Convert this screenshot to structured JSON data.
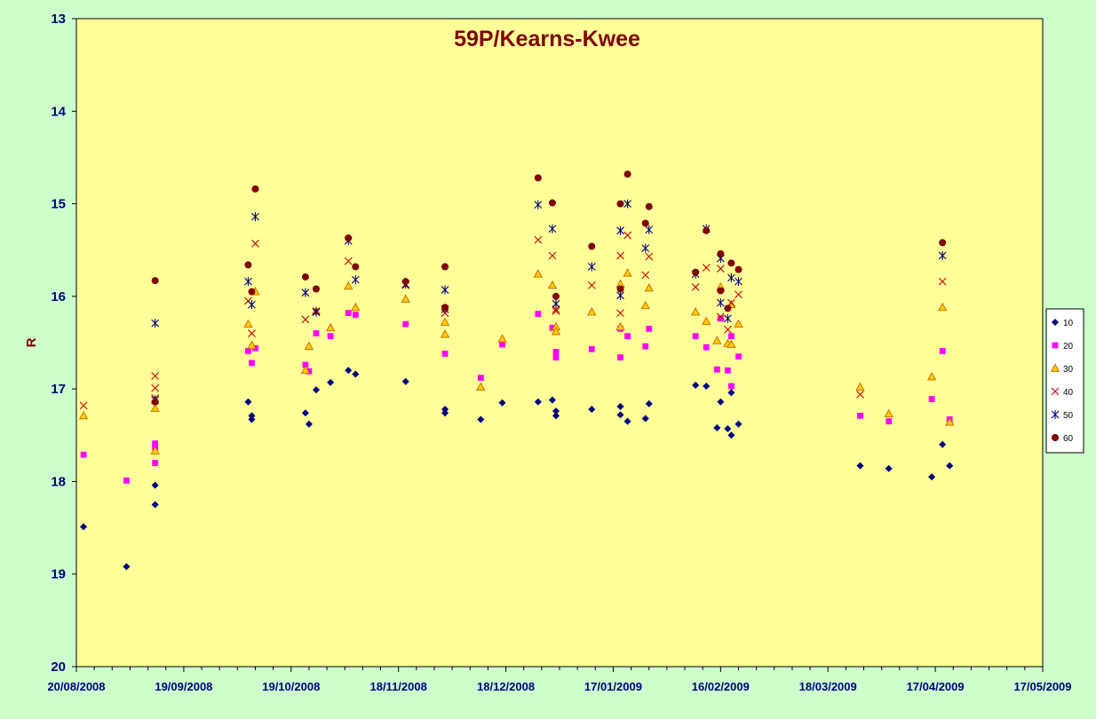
{
  "chart_data": {
    "type": "scatter",
    "title": "59P/Kearns-Kwee",
    "xlabel": "",
    "ylabel": "R",
    "x_axis": {
      "min": "2008-08-20",
      "max": "2009-05-17",
      "tick_labels": [
        "20/08/2008",
        "19/09/2008",
        "19/10/2008",
        "18/11/2008",
        "18/12/2008",
        "17/01/2009",
        "16/02/2009",
        "18/03/2009",
        "17/04/2009",
        "17/05/2009"
      ]
    },
    "y_axis": {
      "min": 13,
      "max": 20,
      "inverted": true,
      "tick_labels": [
        "13",
        "14",
        "15",
        "16",
        "17",
        "18",
        "19",
        "20"
      ]
    },
    "grid": false,
    "legend_position": "right",
    "plot_background": "#ffff99",
    "page_background": "#ccffcc",
    "series": [
      {
        "name": "10",
        "marker": "diamond",
        "color": "#000080",
        "points": [
          [
            "2008-08-22",
            18.49
          ],
          [
            "2008-09-03",
            18.92
          ],
          [
            "2008-09-11",
            18.04
          ],
          [
            "2008-09-11",
            18.25
          ],
          [
            "2008-10-07",
            17.14
          ],
          [
            "2008-10-08",
            17.33
          ],
          [
            "2008-10-08",
            17.29
          ],
          [
            "2008-10-23",
            17.26
          ],
          [
            "2008-10-24",
            17.38
          ],
          [
            "2008-10-26",
            17.01
          ],
          [
            "2008-10-30",
            16.93
          ],
          [
            "2008-11-04",
            16.8
          ],
          [
            "2008-11-06",
            16.84
          ],
          [
            "2008-11-20",
            16.92
          ],
          [
            "2008-12-01",
            17.22
          ],
          [
            "2008-12-01",
            17.26
          ],
          [
            "2008-12-11",
            17.33
          ],
          [
            "2008-12-17",
            17.15
          ],
          [
            "2008-12-27",
            17.14
          ],
          [
            "2008-12-31",
            17.12
          ],
          [
            "2009-01-01",
            17.24
          ],
          [
            "2009-01-01",
            17.29
          ],
          [
            "2009-01-11",
            17.22
          ],
          [
            "2009-01-19",
            17.19
          ],
          [
            "2009-01-19",
            17.28
          ],
          [
            "2009-01-21",
            17.35
          ],
          [
            "2009-01-26",
            17.32
          ],
          [
            "2009-01-27",
            17.16
          ],
          [
            "2009-02-09",
            16.96
          ],
          [
            "2009-02-12",
            16.97
          ],
          [
            "2009-02-15",
            17.42
          ],
          [
            "2009-02-16",
            17.14
          ],
          [
            "2009-02-18",
            17.43
          ],
          [
            "2009-02-19",
            17.04
          ],
          [
            "2009-02-19",
            17.5
          ],
          [
            "2009-02-21",
            17.38
          ],
          [
            "2009-03-27",
            17.83
          ],
          [
            "2009-04-04",
            17.86
          ],
          [
            "2009-04-16",
            17.95
          ],
          [
            "2009-04-19",
            17.6
          ],
          [
            "2009-04-21",
            17.83
          ]
        ]
      },
      {
        "name": "20",
        "marker": "square",
        "color": "#ff00ff",
        "points": [
          [
            "2008-08-22",
            17.71
          ],
          [
            "2008-09-03",
            17.99
          ],
          [
            "2008-09-11",
            17.59
          ],
          [
            "2008-09-11",
            17.63
          ],
          [
            "2008-09-11",
            17.8
          ],
          [
            "2008-10-07",
            16.59
          ],
          [
            "2008-10-08",
            16.72
          ],
          [
            "2008-10-09",
            16.56
          ],
          [
            "2008-10-23",
            16.74
          ],
          [
            "2008-10-24",
            16.81
          ],
          [
            "2008-10-26",
            16.4
          ],
          [
            "2008-10-30",
            16.43
          ],
          [
            "2008-11-04",
            16.18
          ],
          [
            "2008-11-06",
            16.2
          ],
          [
            "2008-11-20",
            16.3
          ],
          [
            "2008-12-01",
            16.62
          ],
          [
            "2008-12-11",
            16.88
          ],
          [
            "2008-12-17",
            16.52
          ],
          [
            "2008-12-27",
            16.19
          ],
          [
            "2008-12-31",
            16.34
          ],
          [
            "2009-01-01",
            16.6
          ],
          [
            "2009-01-01",
            16.66
          ],
          [
            "2009-01-11",
            16.57
          ],
          [
            "2009-01-19",
            16.35
          ],
          [
            "2009-01-19",
            16.66
          ],
          [
            "2009-01-21",
            16.43
          ],
          [
            "2009-01-26",
            16.54
          ],
          [
            "2009-01-27",
            16.35
          ],
          [
            "2009-02-09",
            16.43
          ],
          [
            "2009-02-12",
            16.55
          ],
          [
            "2009-02-15",
            16.79
          ],
          [
            "2009-02-16",
            16.24
          ],
          [
            "2009-02-18",
            16.8
          ],
          [
            "2009-02-19",
            16.43
          ],
          [
            "2009-02-19",
            16.97
          ],
          [
            "2009-02-21",
            16.65
          ],
          [
            "2009-03-27",
            17.29
          ],
          [
            "2009-04-04",
            17.35
          ],
          [
            "2009-04-16",
            17.11
          ],
          [
            "2009-04-19",
            16.59
          ],
          [
            "2009-04-21",
            17.33
          ]
        ]
      },
      {
        "name": "30",
        "marker": "triangle",
        "color": "#ff9900",
        "points": [
          [
            "2008-08-22",
            17.29
          ],
          [
            "2008-09-11",
            17.21
          ],
          [
            "2008-09-11",
            17.67
          ],
          [
            "2008-10-07",
            16.3
          ],
          [
            "2008-10-08",
            16.53
          ],
          [
            "2008-10-09",
            15.95
          ],
          [
            "2008-10-23",
            16.8
          ],
          [
            "2008-10-24",
            16.54
          ],
          [
            "2008-10-26",
            16.16
          ],
          [
            "2008-10-30",
            16.34
          ],
          [
            "2008-11-04",
            15.89
          ],
          [
            "2008-11-06",
            16.12
          ],
          [
            "2008-11-20",
            16.03
          ],
          [
            "2008-12-01",
            16.28
          ],
          [
            "2008-12-01",
            16.41
          ],
          [
            "2008-12-11",
            16.98
          ],
          [
            "2008-12-17",
            16.46
          ],
          [
            "2008-12-27",
            15.76
          ],
          [
            "2008-12-31",
            15.88
          ],
          [
            "2009-01-01",
            16.33
          ],
          [
            "2009-01-01",
            16.38
          ],
          [
            "2009-01-11",
            16.17
          ],
          [
            "2009-01-19",
            15.87
          ],
          [
            "2009-01-19",
            16.33
          ],
          [
            "2009-01-21",
            15.75
          ],
          [
            "2009-01-26",
            16.1
          ],
          [
            "2009-01-27",
            15.91
          ],
          [
            "2009-02-09",
            16.17
          ],
          [
            "2009-02-12",
            16.27
          ],
          [
            "2009-02-15",
            16.48
          ],
          [
            "2009-02-16",
            15.9
          ],
          [
            "2009-02-18",
            16.51
          ],
          [
            "2009-02-19",
            16.09
          ],
          [
            "2009-02-19",
            16.52
          ],
          [
            "2009-02-21",
            16.3
          ],
          [
            "2009-03-27",
            16.98
          ],
          [
            "2009-04-04",
            17.27
          ],
          [
            "2009-04-16",
            16.87
          ],
          [
            "2009-04-19",
            16.12
          ],
          [
            "2009-04-21",
            17.36
          ]
        ]
      },
      {
        "name": "40",
        "marker": "x",
        "color": "#cc0000",
        "points": [
          [
            "2008-08-22",
            17.18
          ],
          [
            "2008-09-11",
            17.1
          ],
          [
            "2008-09-11",
            16.99
          ],
          [
            "2008-09-11",
            16.86
          ],
          [
            "2008-10-07",
            16.05
          ],
          [
            "2008-10-08",
            16.4
          ],
          [
            "2008-10-09",
            15.43
          ],
          [
            "2008-10-23",
            16.25
          ],
          [
            "2008-10-26",
            16.16
          ],
          [
            "2008-11-04",
            15.62
          ],
          [
            "2008-11-20",
            15.88
          ],
          [
            "2008-12-01",
            16.18
          ],
          [
            "2008-12-27",
            15.39
          ],
          [
            "2008-12-31",
            15.56
          ],
          [
            "2009-01-01",
            16.14
          ],
          [
            "2009-01-01",
            16.16
          ],
          [
            "2009-01-11",
            15.88
          ],
          [
            "2009-01-19",
            15.56
          ],
          [
            "2009-01-19",
            16.18
          ],
          [
            "2009-01-21",
            15.34
          ],
          [
            "2009-01-26",
            15.77
          ],
          [
            "2009-01-27",
            15.57
          ],
          [
            "2009-02-09",
            15.9
          ],
          [
            "2009-02-12",
            15.69
          ],
          [
            "2009-02-16",
            15.7
          ],
          [
            "2009-02-16",
            16.22
          ],
          [
            "2009-02-18",
            16.36
          ],
          [
            "2009-02-19",
            16.07
          ],
          [
            "2009-02-21",
            15.98
          ],
          [
            "2009-03-27",
            17.06
          ],
          [
            "2009-04-19",
            15.84
          ]
        ]
      },
      {
        "name": "50",
        "marker": "star",
        "color": "#000080",
        "points": [
          [
            "2008-09-11",
            16.29
          ],
          [
            "2008-09-11",
            17.12
          ],
          [
            "2008-10-07",
            15.84
          ],
          [
            "2008-10-08",
            16.09
          ],
          [
            "2008-10-09",
            15.14
          ],
          [
            "2008-10-23",
            15.96
          ],
          [
            "2008-10-26",
            16.17
          ],
          [
            "2008-11-04",
            15.4
          ],
          [
            "2008-11-06",
            15.82
          ],
          [
            "2008-11-20",
            15.87
          ],
          [
            "2008-12-01",
            15.93
          ],
          [
            "2008-12-01",
            16.14
          ],
          [
            "2008-12-27",
            15.01
          ],
          [
            "2008-12-31",
            15.27
          ],
          [
            "2009-01-01",
            16.08
          ],
          [
            "2009-01-11",
            15.68
          ],
          [
            "2009-01-19",
            15.29
          ],
          [
            "2009-01-19",
            15.99
          ],
          [
            "2009-01-21",
            15.0
          ],
          [
            "2009-01-26",
            15.48
          ],
          [
            "2009-01-27",
            15.28
          ],
          [
            "2009-02-09",
            15.76
          ],
          [
            "2009-02-12",
            15.27
          ],
          [
            "2009-02-16",
            15.59
          ],
          [
            "2009-02-16",
            16.07
          ],
          [
            "2009-02-18",
            16.24
          ],
          [
            "2009-02-19",
            15.8
          ],
          [
            "2009-02-21",
            15.84
          ],
          [
            "2009-04-19",
            15.56
          ]
        ]
      },
      {
        "name": "60",
        "marker": "circle",
        "color": "#800000",
        "points": [
          [
            "2008-09-11",
            15.83
          ],
          [
            "2008-09-11",
            17.14
          ],
          [
            "2008-10-07",
            15.66
          ],
          [
            "2008-10-08",
            15.95
          ],
          [
            "2008-10-09",
            14.84
          ],
          [
            "2008-10-23",
            15.79
          ],
          [
            "2008-10-26",
            15.92
          ],
          [
            "2008-11-04",
            15.37
          ],
          [
            "2008-11-06",
            15.68
          ],
          [
            "2008-11-20",
            15.84
          ],
          [
            "2008-12-01",
            15.68
          ],
          [
            "2008-12-01",
            16.12
          ],
          [
            "2008-12-27",
            14.72
          ],
          [
            "2008-12-31",
            14.99
          ],
          [
            "2009-01-01",
            16.0
          ],
          [
            "2009-01-11",
            15.46
          ],
          [
            "2009-01-19",
            15.0
          ],
          [
            "2009-01-19",
            15.92
          ],
          [
            "2009-01-21",
            14.68
          ],
          [
            "2009-01-26",
            15.21
          ],
          [
            "2009-01-27",
            15.03
          ],
          [
            "2009-02-09",
            15.74
          ],
          [
            "2009-02-12",
            15.29
          ],
          [
            "2009-02-16",
            15.54
          ],
          [
            "2009-02-16",
            15.94
          ],
          [
            "2009-02-18",
            16.13
          ],
          [
            "2009-02-19",
            15.64
          ],
          [
            "2009-02-21",
            15.71
          ],
          [
            "2009-04-19",
            15.42
          ]
        ]
      }
    ]
  }
}
